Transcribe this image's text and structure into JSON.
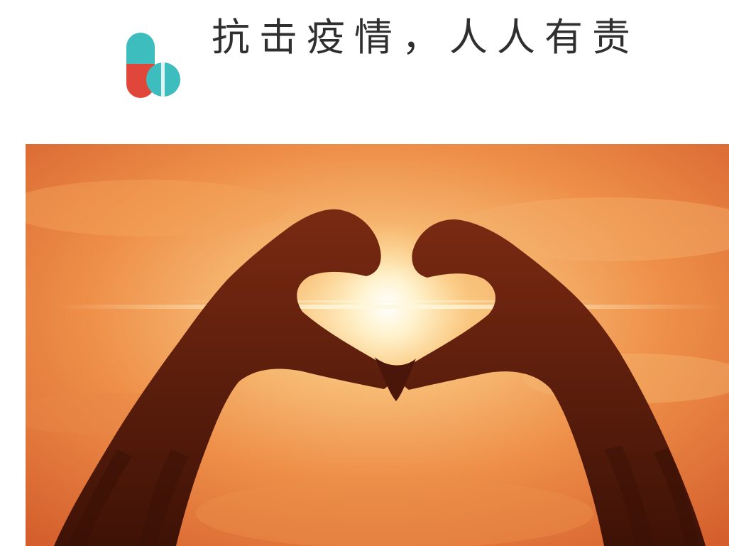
{
  "header": {
    "title": "抗击疫情，人人有责",
    "logo_icon": "capsule-pill-icon",
    "logo_colors": {
      "teal": "#3dbdbd",
      "red": "#e0473a"
    }
  },
  "photo": {
    "icon": "heart-hands-sunset-icon",
    "colors": {
      "sky_light": "#f6b46a",
      "sky_dark": "#d9632a",
      "silhouette": "#5a1a0c",
      "sun": "#fff6dc"
    }
  }
}
